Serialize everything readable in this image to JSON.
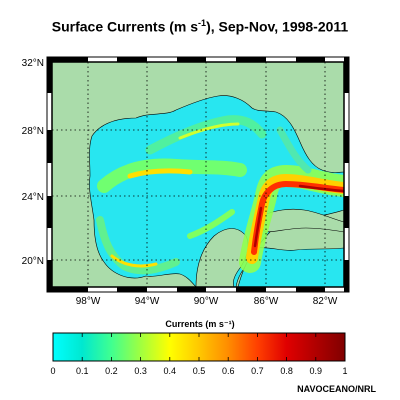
{
  "title": {
    "prefix": "Surface Currents (m s",
    "exponent": "-1",
    "suffix": "),  Sep-Nov, 1998-2011"
  },
  "map": {
    "lat_ticks": [
      {
        "value": 32,
        "label": "32°N"
      },
      {
        "value": 28,
        "label": "28°N"
      },
      {
        "value": 24,
        "label": "24°N"
      },
      {
        "value": 20,
        "label": "20°N"
      }
    ],
    "lon_ticks": [
      {
        "value": -98,
        "label": "98°W"
      },
      {
        "value": -94,
        "label": "94°W"
      },
      {
        "value": -90,
        "label": "90°W"
      },
      {
        "value": -86,
        "label": "86°W"
      },
      {
        "value": -82,
        "label": "82°W"
      }
    ],
    "lat_range": [
      18.2,
      32
    ],
    "lon_range": [
      -100.2,
      -80.4
    ],
    "colors": {
      "land": "#aadcaa",
      "frame": "#000000"
    }
  },
  "colorbar": {
    "title": "Currents (m s⁻¹)",
    "range": [
      0,
      1
    ],
    "ticks": [
      "0",
      "0.1",
      "0.2",
      "0.3",
      "0.4",
      "0.5",
      "0.6",
      "0.7",
      "0.8",
      "0.9",
      "1"
    ],
    "colors": [
      "#00ffff",
      "#00e0c0",
      "#40ff80",
      "#a0ff40",
      "#ffff00",
      "#ffc000",
      "#ff8000",
      "#ff4000",
      "#e00000",
      "#a00000",
      "#800000"
    ]
  },
  "credit": "NAVOCEANO/NRL"
}
